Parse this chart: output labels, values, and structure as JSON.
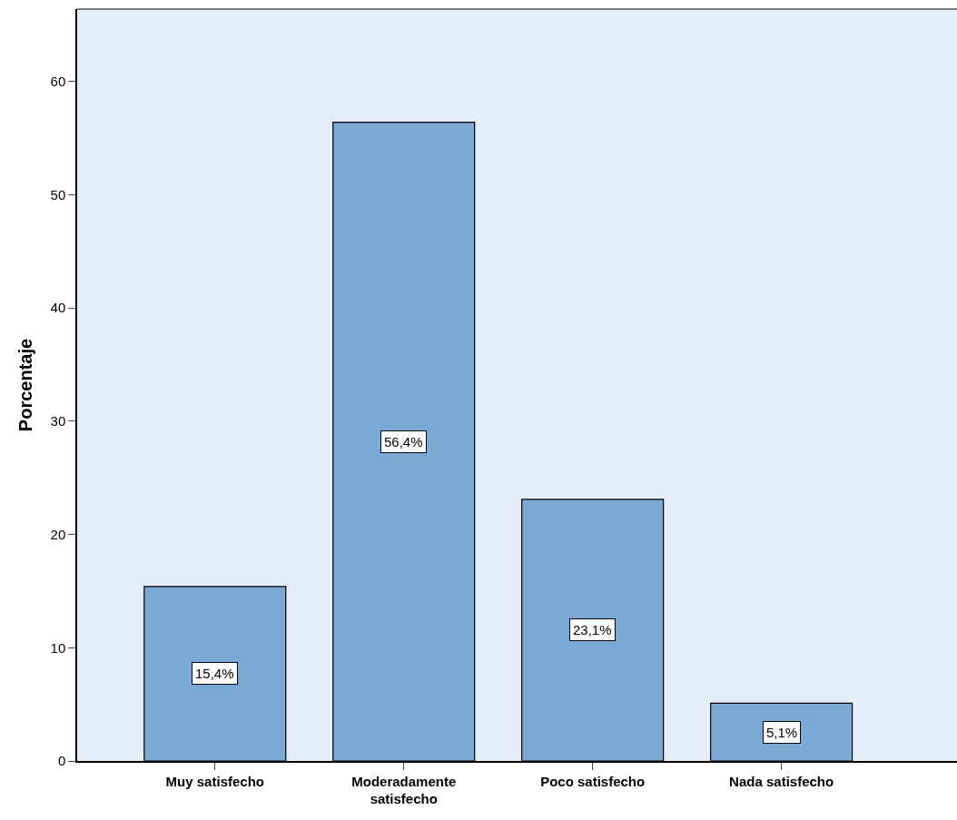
{
  "chart_data": {
    "type": "bar",
    "ylabel": "Porcentaje",
    "categories": [
      "Muy satisfecho",
      "Moderadamente\nsatisfecho",
      "Poco satisfecho",
      "Nada satisfecho"
    ],
    "values": [
      15.4,
      56.4,
      23.1,
      5.1
    ],
    "value_labels": [
      "15,4%",
      "56,4%",
      "23,1%",
      "5,1%"
    ],
    "color": "#7ba9d6",
    "ylim": [
      0,
      66.4
    ],
    "yticks": [
      0,
      10,
      20,
      30,
      40,
      50,
      60
    ],
    "grid": false
  }
}
